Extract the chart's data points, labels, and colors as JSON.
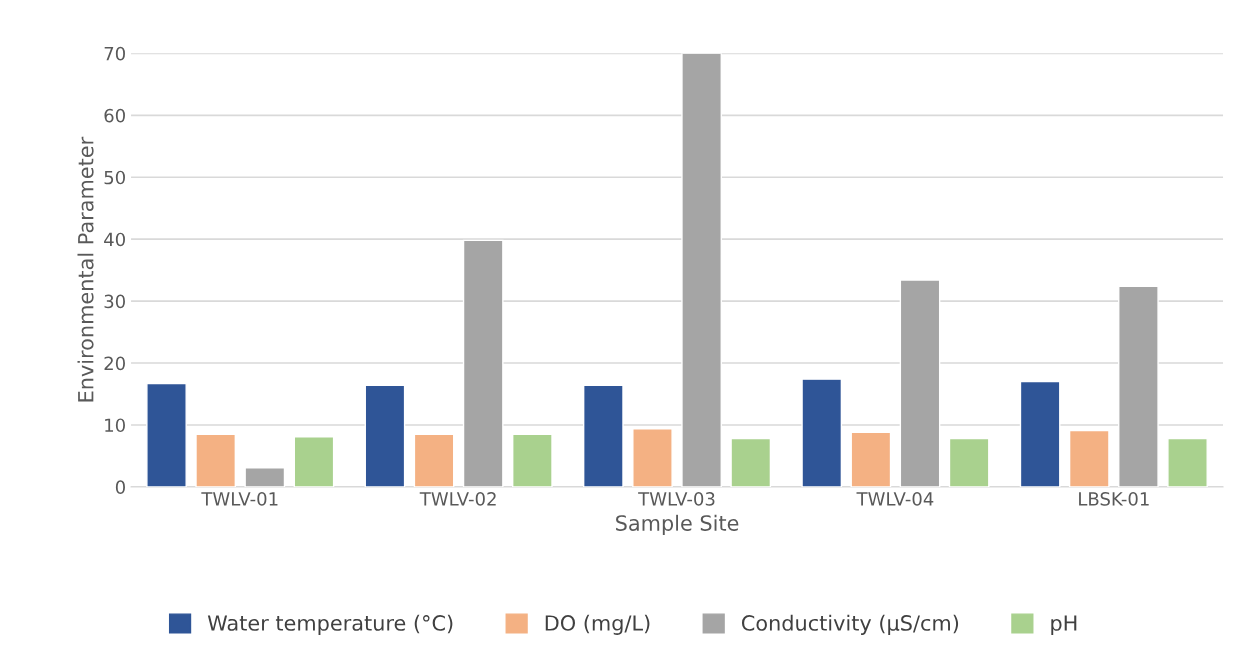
{
  "chart_data": {
    "type": "bar",
    "xlabel": "Sample Site",
    "ylabel": "Environmental Parameter",
    "categories": [
      "TWLV-01",
      "TWLV-02",
      "TWLV-03",
      "TWLV-04",
      "LBSK-01"
    ],
    "series": [
      {
        "name": "Water temperature (°C)",
        "color": "#2f5597",
        "values": [
          16.7,
          16.4,
          16.4,
          17.4,
          17.0
        ]
      },
      {
        "name": "DO (mg/L)",
        "color": "#f4b183",
        "values": [
          8.5,
          8.5,
          9.4,
          8.8,
          9.1
        ]
      },
      {
        "name": "Conductivity (µS/cm)",
        "color": "#a5a5a5",
        "values": [
          3.1,
          39.8,
          70,
          33.4,
          32.4
        ]
      },
      {
        "name": "pH",
        "color": "#a9d18e",
        "values": [
          8.1,
          8.5,
          7.8,
          7.8,
          7.8
        ]
      }
    ],
    "ylim": [
      0,
      70
    ],
    "yticks": [
      0,
      10,
      20,
      30,
      40,
      50,
      60,
      70
    ],
    "grid": "y",
    "legend": "bottom"
  }
}
